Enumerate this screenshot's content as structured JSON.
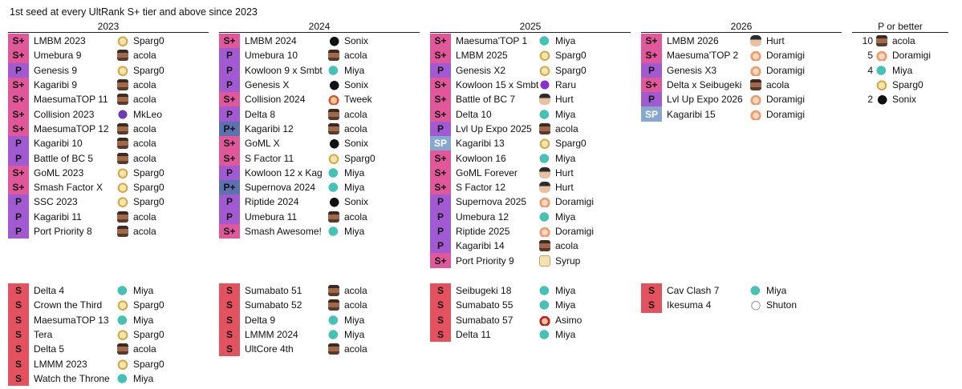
{
  "title": "1st seed at every UltRank S+ tier and above since 2023",
  "years": [
    {
      "header": "2023",
      "top": [
        {
          "tier": "S+",
          "event": "LMBM 2023",
          "player": "Sparg0",
          "icon": "spargo"
        },
        {
          "tier": "S+",
          "event": "Umebura 9",
          "player": "acola",
          "icon": "acola"
        },
        {
          "tier": "P",
          "event": "Genesis 9",
          "player": "Sparg0",
          "icon": "spargo"
        },
        {
          "tier": "S+",
          "event": "Kagaribi 9",
          "player": "acola",
          "icon": "acola"
        },
        {
          "tier": "S+",
          "event": "MaesumaTOP 11",
          "player": "acola",
          "icon": "acola"
        },
        {
          "tier": "S+",
          "event": "Collision 2023",
          "player": "MkLeo",
          "icon": "mkleo"
        },
        {
          "tier": "S+",
          "event": "MaesumaTOP 12",
          "player": "acola",
          "icon": "acola"
        },
        {
          "tier": "P",
          "event": "Kagaribi 10",
          "player": "acola",
          "icon": "acola"
        },
        {
          "tier": "P",
          "event": "Battle of BC 5",
          "player": "acola",
          "icon": "acola"
        },
        {
          "tier": "S+",
          "event": "GoML 2023",
          "player": "Sparg0",
          "icon": "spargo"
        },
        {
          "tier": "S+",
          "event": "Smash Factor X",
          "player": "Sparg0",
          "icon": "spargo"
        },
        {
          "tier": "P",
          "event": "SSC 2023",
          "player": "Sparg0",
          "icon": "spargo"
        },
        {
          "tier": "P",
          "event": "Kagaribi 11",
          "player": "acola",
          "icon": "acola"
        },
        {
          "tier": "P",
          "event": "Port Priority 8",
          "player": "acola",
          "icon": "acola"
        }
      ],
      "bottom": [
        {
          "tier": "S",
          "event": "Delta 4",
          "player": "Miya",
          "icon": "miya"
        },
        {
          "tier": "S",
          "event": "Crown the Third",
          "player": "Sparg0",
          "icon": "spargo"
        },
        {
          "tier": "S",
          "event": "MaesumaTOP 13",
          "player": "Miya",
          "icon": "miya"
        },
        {
          "tier": "S",
          "event": "Tera",
          "player": "Sparg0",
          "icon": "spargo"
        },
        {
          "tier": "S",
          "event": "Delta 5",
          "player": "acola",
          "icon": "acola"
        },
        {
          "tier": "S",
          "event": "LMMM 2023",
          "player": "Sparg0",
          "icon": "spargo"
        },
        {
          "tier": "S",
          "event": "Watch the Throne",
          "player": "Miya",
          "icon": "miya"
        }
      ]
    },
    {
      "header": "2024",
      "top": [
        {
          "tier": "S+",
          "event": "LMBM 2024",
          "player": "Sonix",
          "icon": "sonix"
        },
        {
          "tier": "P",
          "event": "Umebura 10",
          "player": "acola",
          "icon": "acola"
        },
        {
          "tier": "P",
          "event": "Kowloon 9 x Smbt",
          "player": "Miya",
          "icon": "miya"
        },
        {
          "tier": "P",
          "event": "Genesis X",
          "player": "Sonix",
          "icon": "sonix"
        },
        {
          "tier": "S+",
          "event": "Collision 2024",
          "player": "Tweek",
          "icon": "tweek"
        },
        {
          "tier": "P",
          "event": "Delta 8",
          "player": "acola",
          "icon": "acola"
        },
        {
          "tier": "P+",
          "event": "Kagaribi 12",
          "player": "acola",
          "icon": "acola"
        },
        {
          "tier": "S+",
          "event": "GoML X",
          "player": "Sonix",
          "icon": "sonix"
        },
        {
          "tier": "S+",
          "event": "S Factor 11",
          "player": "Sparg0",
          "icon": "spargo"
        },
        {
          "tier": "P",
          "event": "Kowloon 12 x Kag",
          "player": "Miya",
          "icon": "miya"
        },
        {
          "tier": "P+",
          "event": "Supernova 2024",
          "player": "Miya",
          "icon": "miya"
        },
        {
          "tier": "P",
          "event": "Riptide 2024",
          "player": "Sonix",
          "icon": "sonix"
        },
        {
          "tier": "P",
          "event": "Umebura 11",
          "player": "acola",
          "icon": "acola"
        },
        {
          "tier": "S+",
          "event": "Smash Awesome!",
          "player": "Miya",
          "icon": "miya"
        }
      ],
      "bottom": [
        {
          "tier": "S",
          "event": "Sumabato 51",
          "player": "acola",
          "icon": "acola"
        },
        {
          "tier": "S",
          "event": "Sumabato 52",
          "player": "acola",
          "icon": "acola"
        },
        {
          "tier": "S",
          "event": "Delta 9",
          "player": "Miya",
          "icon": "miya"
        },
        {
          "tier": "S",
          "event": "LMMM 2024",
          "player": "Miya",
          "icon": "miya"
        },
        {
          "tier": "S",
          "event": "UltCore 4th",
          "player": "acola",
          "icon": "acola"
        }
      ]
    },
    {
      "header": "2025",
      "top": [
        {
          "tier": "S+",
          "event": "Maesuma'TOP 1",
          "player": "Miya",
          "icon": "miya"
        },
        {
          "tier": "S+",
          "event": "LMBM 2025",
          "player": "Sparg0",
          "icon": "spargo"
        },
        {
          "tier": "P",
          "event": "Genesis X2",
          "player": "Sparg0",
          "icon": "spargo"
        },
        {
          "tier": "S+",
          "event": "Kowloon 15 x Smbt",
          "player": "Raru",
          "icon": "raru"
        },
        {
          "tier": "S+",
          "event": "Battle of BC 7",
          "player": "Hurt",
          "icon": "hurt"
        },
        {
          "tier": "S+",
          "event": "Delta 10",
          "player": "Miya",
          "icon": "miya"
        },
        {
          "tier": "P",
          "event": "Lvl Up Expo 2025",
          "player": "acola",
          "icon": "acola"
        },
        {
          "tier": "SP",
          "event": "Kagaribi 13",
          "player": "Sparg0",
          "icon": "spargo"
        },
        {
          "tier": "S+",
          "event": "Kowloon 16",
          "player": "Miya",
          "icon": "miya"
        },
        {
          "tier": "S+",
          "event": "GoML Forever",
          "player": "Hurt",
          "icon": "hurt"
        },
        {
          "tier": "S+",
          "event": "S Factor 12",
          "player": "Hurt",
          "icon": "hurt"
        },
        {
          "tier": "P",
          "event": "Supernova 2025",
          "player": "Doramigi",
          "icon": "doramigi"
        },
        {
          "tier": "P",
          "event": "Umebura 12",
          "player": "Miya",
          "icon": "miya"
        },
        {
          "tier": "P",
          "event": "Riptide 2025",
          "player": "Doramigi",
          "icon": "doramigi"
        },
        {
          "tier": "P",
          "event": "Kagaribi 14",
          "player": "acola",
          "icon": "acola"
        },
        {
          "tier": "S+",
          "event": "Port Priority 9",
          "player": "Syrup",
          "icon": "syrup"
        }
      ],
      "bottom": [
        {
          "tier": "S",
          "event": "Seibugeki 18",
          "player": "Miya",
          "icon": "miya"
        },
        {
          "tier": "S",
          "event": "Sumabato 55",
          "player": "Miya",
          "icon": "miya"
        },
        {
          "tier": "S",
          "event": "Sumabato 57",
          "player": "Asimo",
          "icon": "asimo"
        },
        {
          "tier": "S",
          "event": "Delta 11",
          "player": "Miya",
          "icon": "miya"
        }
      ]
    },
    {
      "header": "2026",
      "top": [
        {
          "tier": "S+",
          "event": "LMBM 2026",
          "player": "Hurt",
          "icon": "hurt"
        },
        {
          "tier": "S+",
          "event": "Maesuma'TOP 2",
          "player": "Doramigi",
          "icon": "doramigi"
        },
        {
          "tier": "P",
          "event": "Genesis X3",
          "player": "Doramigi",
          "icon": "doramigi"
        },
        {
          "tier": "S+",
          "event": "Delta x Seibugeki",
          "player": "acola",
          "icon": "acola"
        },
        {
          "tier": "P",
          "event": "Lvl Up Expo 2026",
          "player": "Doramigi",
          "icon": "doramigi"
        },
        {
          "tier": "SP",
          "event": "Kagaribi 15",
          "player": "Doramigi",
          "icon": "doramigi"
        }
      ],
      "bottom": [
        {
          "tier": "S",
          "event": "Cav Clash 7",
          "player": "Miya",
          "icon": "miya"
        },
        {
          "tier": "S",
          "event": "Ikesuma 4",
          "player": "Shuton",
          "icon": "shuton"
        }
      ]
    }
  ],
  "summary": {
    "header": "P or better",
    "rows": [
      {
        "count": "10",
        "player": "acola",
        "icon": "acola"
      },
      {
        "count": "5",
        "player": "Doramigi",
        "icon": "doramigi"
      },
      {
        "count": "4",
        "player": "Miya",
        "icon": "miya"
      },
      {
        "count": "",
        "player": "Sparg0",
        "icon": "spargo"
      },
      {
        "count": "2",
        "player": "Sonix",
        "icon": "sonix"
      }
    ]
  }
}
